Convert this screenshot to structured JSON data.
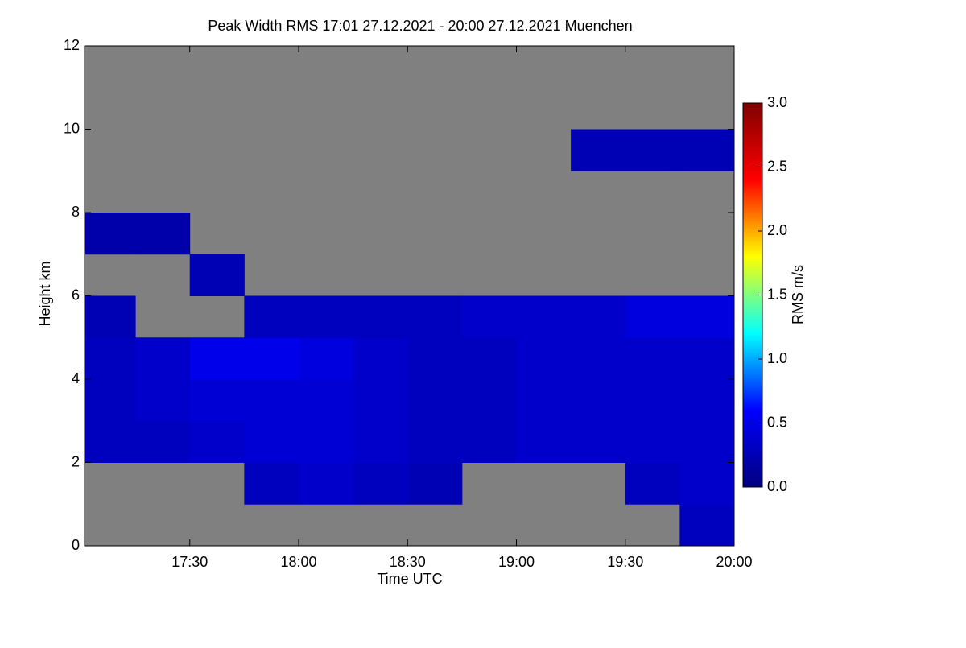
{
  "chart_data": {
    "type": "heatmap",
    "title": "Peak Width RMS   17:01 27.12.2021 - 20:00 27.12.2021 Muenchen",
    "x_label": "Time UTC",
    "y_label": "Height km",
    "colorbar_label": "RMS m/s",
    "xlim": [
      17.0167,
      20.0
    ],
    "xticks": [
      {
        "value": 17.5,
        "label": "17:30"
      },
      {
        "value": 18.0,
        "label": "18:00"
      },
      {
        "value": 18.5,
        "label": "18:30"
      },
      {
        "value": 19.0,
        "label": "19:00"
      },
      {
        "value": 19.5,
        "label": "19:30"
      },
      {
        "value": 20.0,
        "label": "20:00"
      }
    ],
    "ylim": [
      0,
      12
    ],
    "yticks": [
      0,
      2,
      4,
      6,
      8,
      10,
      12
    ],
    "zlim": [
      0,
      3
    ],
    "zticks": [
      {
        "value": 0,
        "label": "0.0"
      },
      {
        "value": 0.5,
        "label": "0.5"
      },
      {
        "value": 1,
        "label": "1.0"
      },
      {
        "value": 1.5,
        "label": "1.5"
      },
      {
        "value": 2,
        "label": "2.0"
      },
      {
        "value": 2.5,
        "label": "2.5"
      },
      {
        "value": 3,
        "label": "3.0"
      }
    ],
    "colormap": [
      "#00007f",
      "#0000ff",
      "#00ffff",
      "#ffff00",
      "#ff0000",
      "#7f0000"
    ],
    "nodata_color": "#808080",
    "x": [
      17.125,
      17.375,
      17.625,
      17.875,
      18.125,
      18.375,
      18.625,
      18.875,
      19.125,
      19.375,
      19.625,
      19.875
    ],
    "y": [
      0.5,
      1.5,
      2.5,
      3.5,
      4.5,
      5.5,
      6.5,
      7.5,
      8.5,
      9.5,
      10.5,
      11.5
    ],
    "z": [
      [
        null,
        null,
        null,
        null,
        null,
        null,
        null,
        null,
        null,
        null,
        null,
        0.3
      ],
      [
        null,
        null,
        null,
        0.3,
        0.35,
        0.3,
        0.25,
        null,
        null,
        null,
        0.3,
        0.35
      ],
      [
        0.3,
        0.3,
        0.35,
        0.4,
        0.4,
        0.35,
        0.3,
        0.3,
        0.35,
        0.35,
        0.35,
        0.35
      ],
      [
        0.3,
        0.35,
        0.4,
        0.4,
        0.4,
        0.35,
        0.3,
        0.3,
        0.35,
        0.35,
        0.35,
        0.35
      ],
      [
        0.3,
        0.35,
        0.5,
        0.5,
        0.45,
        0.35,
        0.3,
        0.3,
        0.35,
        0.35,
        0.35,
        0.35
      ],
      [
        0.25,
        null,
        null,
        0.3,
        0.3,
        0.3,
        0.3,
        0.35,
        0.35,
        0.35,
        0.45,
        0.45
      ],
      [
        null,
        null,
        0.25,
        null,
        null,
        null,
        null,
        null,
        null,
        null,
        null,
        null
      ],
      [
        0.2,
        0.2,
        null,
        null,
        null,
        null,
        null,
        null,
        null,
        null,
        null,
        null
      ],
      [
        null,
        null,
        null,
        null,
        null,
        null,
        null,
        null,
        null,
        null,
        null,
        null
      ],
      [
        null,
        null,
        null,
        null,
        null,
        null,
        null,
        null,
        null,
        0.25,
        0.25,
        0.25
      ],
      [
        null,
        null,
        null,
        null,
        null,
        null,
        null,
        null,
        null,
        null,
        null,
        null
      ],
      [
        null,
        null,
        null,
        null,
        null,
        null,
        null,
        null,
        null,
        null,
        null,
        null
      ]
    ]
  }
}
